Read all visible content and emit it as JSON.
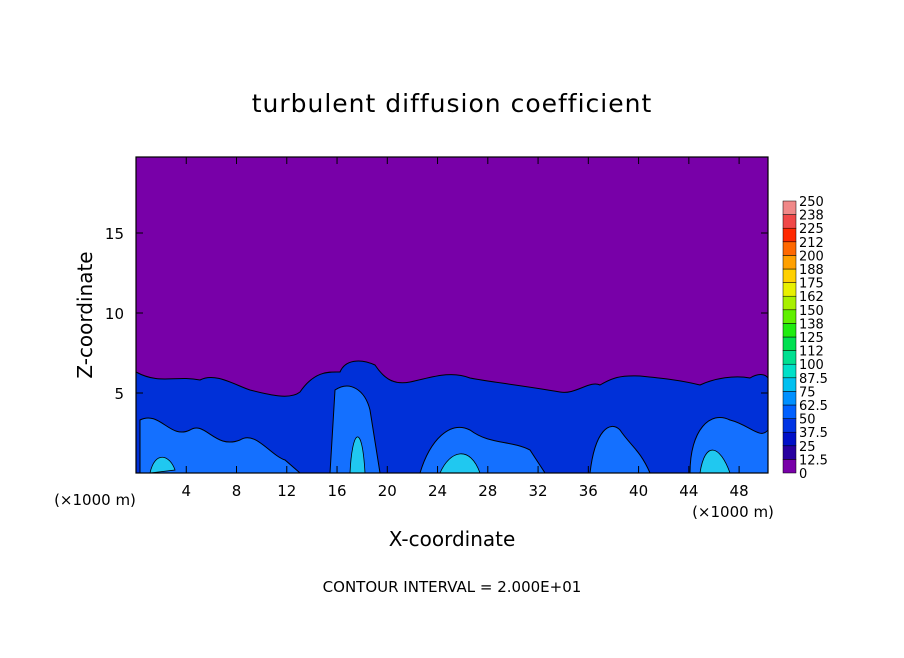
{
  "chart_data": {
    "type": "contour",
    "title": "turbulent diffusion coefficient",
    "x_label": "X-coordinate",
    "y_label": "Z-coordinate",
    "x_unit_labels": [
      "(×1000 m)",
      "(×1000 m)"
    ],
    "annotation": "CONTOUR INTERVAL = 2.000E+01",
    "xlim": [
      0,
      50.3
    ],
    "xticks": [
      4,
      8,
      12,
      16,
      20,
      24,
      28,
      32,
      36,
      40,
      44,
      48
    ],
    "ylim": [
      0,
      19.75
    ],
    "yticks": [
      5,
      10,
      15
    ],
    "colorbar": {
      "levels": [
        0,
        12.5,
        25,
        37.5,
        50,
        62.5,
        75,
        87.5,
        100,
        112,
        125,
        138,
        150,
        162,
        175,
        188,
        200,
        212,
        225,
        238,
        250
      ],
      "colors": [
        "#7800a8",
        "#2800a0",
        "#0010c8",
        "#0034e4",
        "#0060ff",
        "#0090ff",
        "#00c0f0",
        "#00e0c8",
        "#00e090",
        "#00e050",
        "#20ec10",
        "#60f000",
        "#a8f000",
        "#e8f000",
        "#ffd000",
        "#ffa000",
        "#ff6800",
        "#ff2800",
        "#f04848",
        "#f08888"
      ]
    }
  }
}
